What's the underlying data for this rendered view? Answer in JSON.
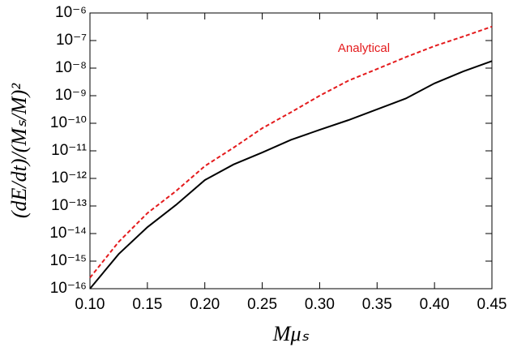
{
  "chart_data": {
    "type": "line",
    "x_label": "Mμₛ",
    "y_label": "(dE/dt)/(Mₛ/M)²",
    "log_y": true,
    "x": [
      0.1,
      0.125,
      0.15,
      0.175,
      0.2,
      0.225,
      0.25,
      0.275,
      0.3,
      0.325,
      0.35,
      0.375,
      0.4,
      0.425,
      0.45
    ],
    "series": [
      {
        "color": "#000000",
        "dash": false,
        "values": [
          1e-16,
          1.8e-15,
          1.7e-14,
          1.1e-13,
          8.7e-13,
          3.2e-12,
          8.7e-12,
          2.5e-11,
          5.8e-11,
          1.3e-10,
          3.2e-10,
          7.9e-10,
          2.8e-09,
          7.6e-09,
          1.8e-08
        ]
      },
      {
        "name": "Analytical",
        "color": "#e41a1c",
        "dash": true,
        "values": [
          2.5e-16,
          5e-15,
          5.5e-14,
          3.5e-13,
          2.8e-12,
          1.3e-11,
          6.6e-11,
          2.5e-10,
          1e-09,
          3.5e-09,
          9.3e-09,
          2.5e-08,
          6.3e-08,
          1.4e-07,
          3.2e-07
        ]
      }
    ],
    "xlim": [
      0.1,
      0.45
    ],
    "xticks": [
      {
        "value": 0.1,
        "label": "0.10"
      },
      {
        "value": 0.15,
        "label": "0.15"
      },
      {
        "value": 0.2,
        "label": "0.20"
      },
      {
        "value": 0.25,
        "label": "0.25"
      },
      {
        "value": 0.3,
        "label": "0.30"
      },
      {
        "value": 0.35,
        "label": "0.35"
      },
      {
        "value": 0.4,
        "label": "0.40"
      },
      {
        "value": 0.45,
        "label": "0.45"
      }
    ],
    "ylim": [
      1e-16,
      1e-06
    ],
    "yticks": [
      {
        "value": 1e-16,
        "label": "10⁻¹⁶"
      },
      {
        "value": 1e-15,
        "label": "10⁻¹⁵"
      },
      {
        "value": 1e-14,
        "label": "10⁻¹⁴"
      },
      {
        "value": 1e-13,
        "label": "10⁻¹³"
      },
      {
        "value": 1e-12,
        "label": "10⁻¹²"
      },
      {
        "value": 1e-11,
        "label": "10⁻¹¹"
      },
      {
        "value": 1e-10,
        "label": "10⁻¹⁰"
      },
      {
        "value": 1e-09,
        "label": "10⁻⁹"
      },
      {
        "value": 1e-08,
        "label": "10⁻⁸"
      },
      {
        "value": 1e-07,
        "label": "10⁻⁷"
      },
      {
        "value": 1e-06,
        "label": "10⁻⁶"
      }
    ]
  }
}
